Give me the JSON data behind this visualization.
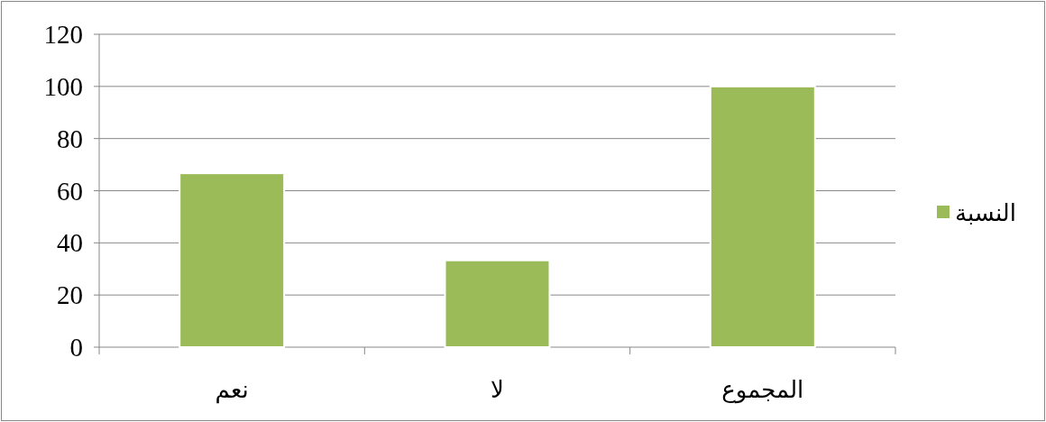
{
  "chart_data": {
    "type": "bar",
    "categories": [
      "نعم",
      "لا",
      "المجموع"
    ],
    "series": [
      {
        "name": "النسبة",
        "color": "#9bbb59",
        "values": [
          66.7,
          33.3,
          100
        ]
      }
    ],
    "ylim": [
      0,
      120
    ],
    "yticks": [
      0,
      20,
      40,
      60,
      80,
      100,
      120
    ],
    "grid": "y",
    "legend": "right"
  }
}
